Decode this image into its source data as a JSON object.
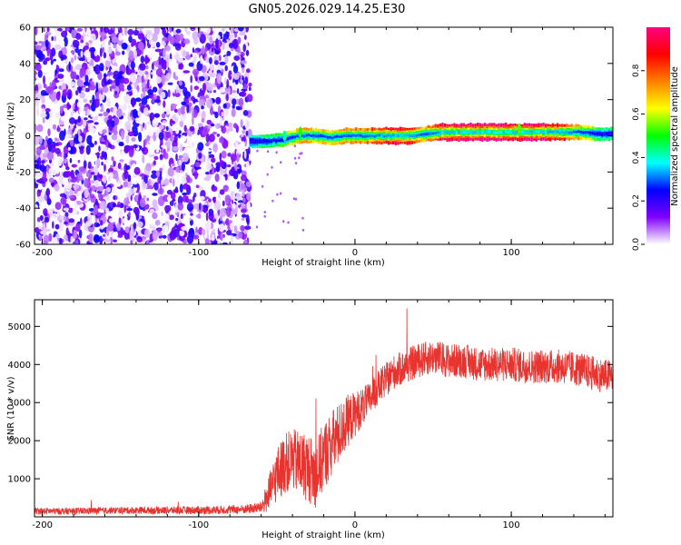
{
  "title": "GN05.2026.029.14.25.E30",
  "chart_data": [
    {
      "type": "heatmap",
      "xlabel": "Height of straight line (km)",
      "ylabel": "Frequency (Hz)",
      "xlim": [
        -205,
        165
      ],
      "ylim": [
        -60,
        60
      ],
      "xticks": [
        -200,
        -100,
        0,
        100
      ],
      "xtick_labels": [
        "-200",
        "-100",
        "0",
        "100"
      ],
      "yticks": [
        -60,
        -40,
        -20,
        0,
        20,
        40,
        60
      ],
      "ytick_labels": [
        "-60",
        "-40",
        "-20",
        "0",
        "20",
        "40",
        "60"
      ],
      "noise_region_x": [
        -205,
        -67
      ],
      "noise_amplitude_range": [
        0.0,
        0.25
      ],
      "signal_track": {
        "x": [
          -67,
          -55,
          -45,
          -35,
          -25,
          -15,
          -5,
          5,
          15,
          25,
          35,
          45,
          55,
          65,
          75,
          85,
          95,
          105,
          115,
          125,
          135,
          145,
          155,
          165
        ],
        "frequency": [
          -3,
          -3,
          -2,
          0,
          0,
          -1,
          0,
          0,
          0,
          0,
          0,
          1,
          2,
          2,
          2,
          2,
          2,
          2,
          2,
          2,
          2,
          2,
          1,
          1
        ],
        "amplitude": [
          0.4,
          0.5,
          0.55,
          0.75,
          0.7,
          0.7,
          0.75,
          0.75,
          0.85,
          0.95,
          0.9,
          0.7,
          0.95,
          1.0,
          1.0,
          1.0,
          1.0,
          0.98,
          1.0,
          0.95,
          0.85,
          0.7,
          0.5,
          0.45
        ]
      },
      "colorbar": {
        "label": "Normalized spectral amplitude",
        "range": [
          0.0,
          1.0
        ],
        "ticks": [
          0.0,
          0.2,
          0.4,
          0.6,
          0.8
        ],
        "tick_labels": [
          "0.0",
          "0.2",
          "0.4",
          "0.6",
          "0.8"
        ],
        "colors": [
          "#ffffff",
          "#8000ff",
          "#0000ff",
          "#00ffff",
          "#00ff00",
          "#ffff00",
          "#ff8000",
          "#ff0000",
          "#ff0080"
        ]
      }
    },
    {
      "type": "line",
      "xlabel": "Height of straight line (km)",
      "ylabel": "SNR (10 * v/v)",
      "xlim": [
        -205,
        165
      ],
      "ylim": [
        0,
        5700
      ],
      "xticks": [
        -200,
        -100,
        0,
        100
      ],
      "xtick_labels": [
        "-200",
        "-100",
        "0",
        "100"
      ],
      "yticks": [
        1000,
        2000,
        3000,
        4000,
        5000
      ],
      "ytick_labels": [
        "1000",
        "2000",
        "3000",
        "4000",
        "5000"
      ],
      "color": "#e8332f",
      "series": [
        {
          "name": "SNR",
          "x": [
            -205,
            -180,
            -150,
            -120,
            -90,
            -70,
            -60,
            -55,
            -50,
            -45,
            -40,
            -35,
            -30,
            -25,
            -20,
            -15,
            -10,
            -5,
            0,
            5,
            10,
            15,
            20,
            25,
            30,
            35,
            40,
            50,
            60,
            70,
            80,
            90,
            100,
            110,
            120,
            130,
            140,
            150,
            160,
            165
          ],
          "values": [
            150,
            150,
            170,
            170,
            180,
            200,
            250,
            600,
            1100,
            1400,
            1500,
            1400,
            1300,
            1100,
            1600,
            1900,
            2200,
            2500,
            2700,
            2900,
            3100,
            3400,
            3600,
            3800,
            3900,
            4000,
            4100,
            4200,
            4100,
            4100,
            4000,
            4000,
            4000,
            3950,
            3950,
            3950,
            3900,
            3800,
            3700,
            3700
          ],
          "noise": [
            90,
            90,
            90,
            100,
            110,
            120,
            150,
            500,
            700,
            800,
            800,
            900,
            900,
            900,
            900,
            900,
            800,
            700,
            600,
            500,
            450,
            450,
            450,
            450,
            450,
            450,
            450,
            450,
            450,
            450,
            450,
            450,
            450,
            450,
            450,
            450,
            450,
            450,
            450,
            450
          ]
        }
      ]
    }
  ]
}
